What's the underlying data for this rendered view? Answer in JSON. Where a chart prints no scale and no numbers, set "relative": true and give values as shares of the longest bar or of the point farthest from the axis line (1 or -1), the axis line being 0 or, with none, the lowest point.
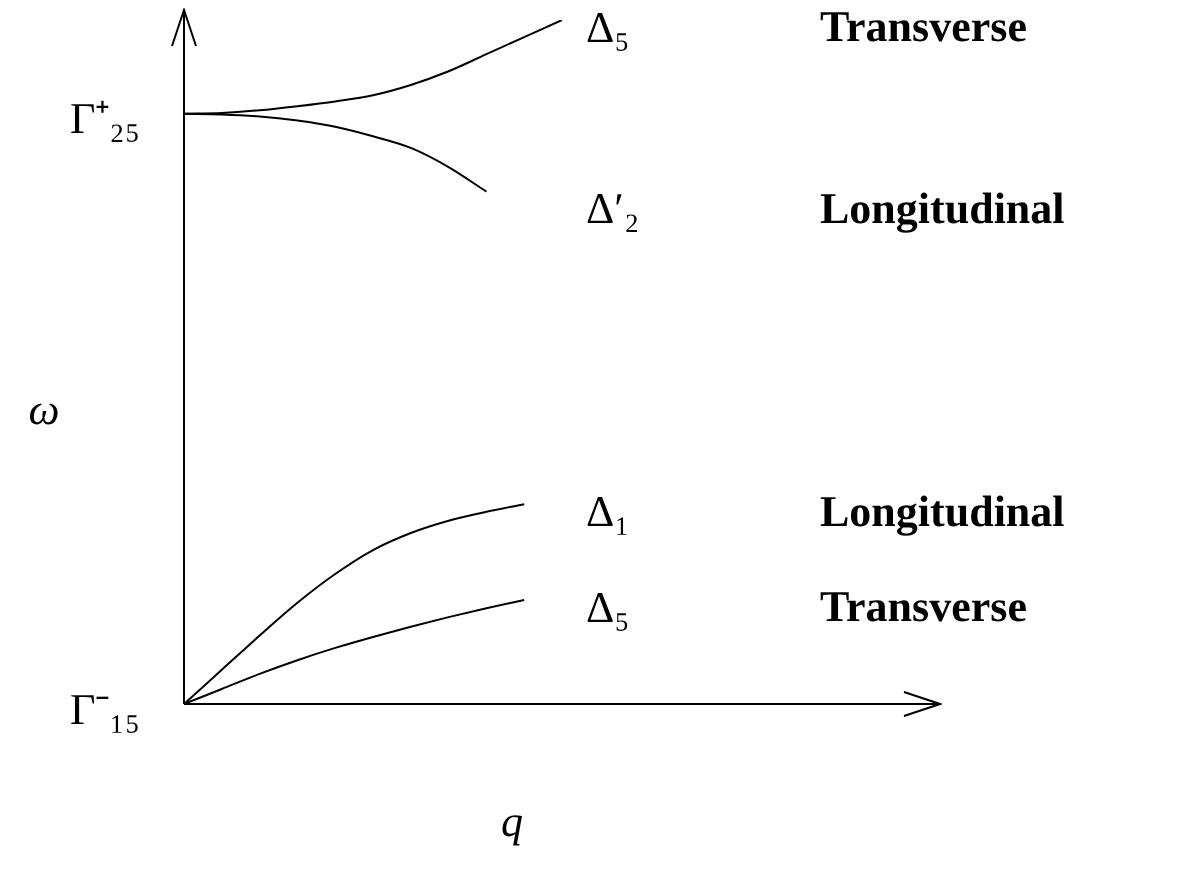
{
  "chart_data": {
    "type": "line",
    "relative": true,
    "xlabel": "q",
    "ylabel": "ω",
    "legend": false,
    "marker": "none",
    "line_style": "solid",
    "categories": [
      null,
      null,
      null,
      null,
      null,
      null,
      null,
      null,
      null,
      null,
      null,
      null,
      null,
      null,
      null,
      null,
      null,
      null,
      null,
      null,
      null
    ],
    "series": [
      {
        "name": "Δ₅",
        "color": "#000000",
        "values": [
          0.863,
          0.864,
          0.868,
          0.874,
          0.881,
          0.89,
          0.905,
          0.925,
          0.95,
          0.975,
          1.0,
          null,
          null,
          null,
          null,
          null,
          null,
          null,
          null,
          null,
          null
        ]
      },
      {
        "name": "Δ′₂",
        "color": "#000000",
        "values": [
          0.863,
          0.862,
          0.859,
          0.853,
          0.844,
          0.83,
          0.813,
          0.785,
          0.749,
          null,
          null,
          null,
          null,
          null,
          null,
          null,
          null,
          null,
          null,
          null,
          null
        ]
      },
      {
        "name": "Δ₁",
        "color": "#000000",
        "values": [
          0,
          0.05,
          0.1,
          0.148,
          0.19,
          0.225,
          0.25,
          0.268,
          0.281,
          0.292,
          null,
          null,
          null,
          null,
          null,
          null,
          null,
          null,
          null,
          null,
          null
        ]
      },
      {
        "name": "Δ₅",
        "color": "#000000",
        "values": [
          0,
          0.022,
          0.044,
          0.064,
          0.082,
          0.098,
          0.113,
          0.127,
          0.14,
          0.152,
          null,
          null,
          null,
          null,
          null,
          null,
          null,
          null,
          null,
          null,
          null
        ]
      }
    ],
    "annotations": [
      "Transverse",
      "Longitudinal",
      "Longitudinal",
      "Transverse",
      "Γ⁺₂₅",
      "Γ⁻₁₅"
    ]
  }
}
